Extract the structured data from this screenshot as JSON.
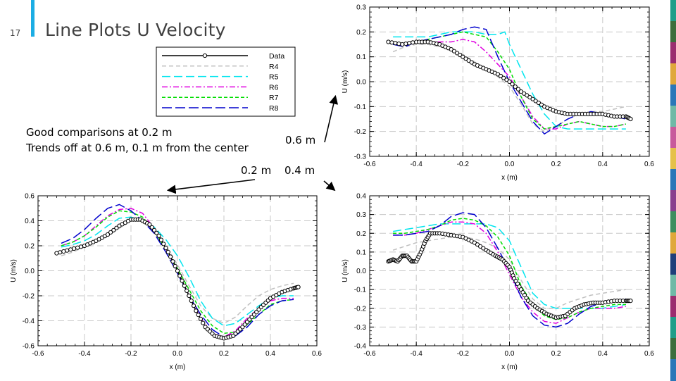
{
  "slide": {
    "number": "17",
    "title": "Line Plots U Velocity",
    "notes": [
      "Good comparisons at 0.2 m",
      "Trends off at 0.6 m, 0.1 m from the center"
    ],
    "pointer_labels": {
      "p06": "0.6 m",
      "p02": "0.2 m",
      "p04": "0.4 m"
    },
    "accent_color": "#1cade4",
    "strip_colors": [
      "#1f9e89",
      "#3c6e3c",
      "#9b2d6f",
      "#e0a83a",
      "#2a77b8",
      "#6fb9a6",
      "#c85a9c",
      "#e5c14a",
      "#2a77b8",
      "#8a3f8e",
      "#3e8e5f",
      "#e0a83a",
      "#1f3f7a",
      "#6fb9a6",
      "#9b2d6f",
      "#1f9e89",
      "#3c6e3c",
      "#2a77b8"
    ]
  },
  "chart_data": [
    {
      "type": "line",
      "id": "p06",
      "xlabel": "x (m)",
      "ylabel": "U (m/s)",
      "xlim": [
        -0.6,
        0.6
      ],
      "ylim": [
        -0.3,
        0.3
      ],
      "xticks": [
        -0.6,
        -0.4,
        -0.2,
        0.0,
        0.2,
        0.4,
        0.6
      ],
      "yticks": [
        -0.3,
        -0.2,
        -0.1,
        0.0,
        0.1,
        0.2,
        0.3
      ],
      "grid": true,
      "series": [
        {
          "name": "Data",
          "color": "#000000",
          "marker": "circle",
          "x": [
            -0.52,
            -0.46,
            -0.4,
            -0.35,
            -0.3,
            -0.25,
            -0.2,
            -0.15,
            -0.1,
            -0.05,
            0.0,
            0.05,
            0.1,
            0.15,
            0.2,
            0.25,
            0.3,
            0.35,
            0.4,
            0.45,
            0.5,
            0.52
          ],
          "y": [
            0.16,
            0.15,
            0.16,
            0.16,
            0.15,
            0.13,
            0.1,
            0.07,
            0.05,
            0.03,
            0.0,
            -0.04,
            -0.07,
            -0.1,
            -0.12,
            -0.13,
            -0.13,
            -0.13,
            -0.13,
            -0.14,
            -0.14,
            -0.15
          ]
        },
        {
          "name": "R4",
          "color": "#c0c0c0",
          "dash": "6,4",
          "x": [
            -0.5,
            -0.45,
            -0.4,
            -0.35,
            -0.3,
            -0.25,
            -0.2,
            -0.15,
            -0.1,
            -0.05,
            0.0,
            0.05,
            0.1,
            0.15,
            0.2,
            0.25,
            0.3,
            0.35,
            0.4,
            0.45,
            0.5
          ],
          "y": [
            0.12,
            0.14,
            0.15,
            0.15,
            0.14,
            0.13,
            0.11,
            0.08,
            0.05,
            0.02,
            -0.02,
            -0.09,
            -0.17,
            -0.2,
            -0.18,
            -0.15,
            -0.13,
            -0.12,
            -0.12,
            -0.11,
            -0.1
          ]
        },
        {
          "name": "R5",
          "color": "#00e5ee",
          "dash": "12,5",
          "x": [
            -0.5,
            -0.45,
            -0.4,
            -0.35,
            -0.3,
            -0.25,
            -0.2,
            -0.15,
            -0.1,
            -0.05,
            -0.02,
            0.0,
            0.05,
            0.1,
            0.15,
            0.2,
            0.25,
            0.3,
            0.35,
            0.4,
            0.45,
            0.5
          ],
          "y": [
            0.18,
            0.18,
            0.18,
            0.18,
            0.19,
            0.2,
            0.2,
            0.2,
            0.19,
            0.19,
            0.2,
            0.15,
            0.05,
            -0.05,
            -0.13,
            -0.18,
            -0.19,
            -0.19,
            -0.19,
            -0.19,
            -0.19,
            -0.19
          ]
        },
        {
          "name": "R6",
          "color": "#e000e0",
          "dash": "8,3,2,3",
          "x": [
            -0.5,
            -0.45,
            -0.4,
            -0.35,
            -0.3,
            -0.25,
            -0.2,
            -0.15,
            -0.1,
            -0.05,
            0.0,
            0.05,
            0.1,
            0.15,
            0.2,
            0.25,
            0.3,
            0.35,
            0.4,
            0.45,
            0.5
          ],
          "y": [
            0.15,
            0.15,
            0.16,
            0.16,
            0.16,
            0.16,
            0.17,
            0.16,
            0.12,
            0.07,
            0.02,
            -0.06,
            -0.14,
            -0.19,
            -0.19,
            -0.17,
            -0.16,
            -0.17,
            -0.18,
            -0.18,
            -0.17
          ]
        },
        {
          "name": "R7",
          "color": "#00dd00",
          "dash": "5,3",
          "x": [
            -0.5,
            -0.45,
            -0.4,
            -0.35,
            -0.3,
            -0.25,
            -0.2,
            -0.15,
            -0.1,
            -0.05,
            0.0,
            0.05,
            0.1,
            0.15,
            0.2,
            0.25,
            0.3,
            0.35,
            0.4,
            0.45,
            0.5
          ],
          "y": [
            0.15,
            0.15,
            0.16,
            0.17,
            0.18,
            0.19,
            0.2,
            0.19,
            0.18,
            0.12,
            0.05,
            -0.06,
            -0.15,
            -0.19,
            -0.18,
            -0.17,
            -0.16,
            -0.17,
            -0.18,
            -0.18,
            -0.17
          ]
        },
        {
          "name": "R8",
          "color": "#0000cc",
          "dash": "14,5",
          "x": [
            -0.5,
            -0.45,
            -0.4,
            -0.35,
            -0.3,
            -0.25,
            -0.2,
            -0.15,
            -0.1,
            -0.05,
            0.0,
            0.05,
            0.1,
            0.15,
            0.2,
            0.25,
            0.3,
            0.35,
            0.4,
            0.45,
            0.5
          ],
          "y": [
            0.15,
            0.14,
            0.16,
            0.17,
            0.18,
            0.19,
            0.21,
            0.22,
            0.21,
            0.1,
            0.0,
            -0.08,
            -0.16,
            -0.21,
            -0.18,
            -0.15,
            -0.13,
            -0.12,
            -0.13,
            -0.14,
            -0.15
          ]
        }
      ],
      "legend": {
        "placement": "top-left",
        "entries": [
          "Data",
          "R4",
          "R5",
          "R6",
          "R7",
          "R8"
        ]
      }
    },
    {
      "type": "line",
      "id": "p02",
      "xlabel": "x (m)",
      "ylabel": "U (m/s)",
      "xlim": [
        -0.6,
        0.6
      ],
      "ylim": [
        -0.6,
        0.6
      ],
      "xticks": [
        -0.6,
        -0.4,
        -0.2,
        0.0,
        0.2,
        0.4,
        0.6
      ],
      "yticks": [
        -0.6,
        -0.4,
        -0.2,
        0.0,
        0.2,
        0.4,
        0.6
      ],
      "grid": true,
      "series": [
        {
          "name": "Data",
          "color": "#000000",
          "marker": "circle",
          "x": [
            -0.52,
            -0.46,
            -0.4,
            -0.35,
            -0.3,
            -0.25,
            -0.2,
            -0.16,
            -0.12,
            -0.08,
            -0.04,
            0.0,
            0.04,
            0.08,
            0.12,
            0.16,
            0.2,
            0.24,
            0.28,
            0.32,
            0.36,
            0.4,
            0.45,
            0.5,
            0.52
          ],
          "y": [
            0.14,
            0.17,
            0.2,
            0.24,
            0.29,
            0.36,
            0.41,
            0.41,
            0.37,
            0.28,
            0.15,
            0.0,
            -0.16,
            -0.32,
            -0.45,
            -0.52,
            -0.54,
            -0.52,
            -0.45,
            -0.37,
            -0.29,
            -0.22,
            -0.17,
            -0.14,
            -0.13
          ]
        },
        {
          "name": "R4",
          "color": "#c0c0c0",
          "dash": "6,4",
          "x": [
            -0.5,
            -0.45,
            -0.4,
            -0.35,
            -0.3,
            -0.25,
            -0.2,
            -0.15,
            -0.1,
            -0.05,
            0.0,
            0.05,
            0.1,
            0.15,
            0.2,
            0.25,
            0.3,
            0.35,
            0.4,
            0.45,
            0.5
          ],
          "y": [
            0.12,
            0.15,
            0.19,
            0.23,
            0.28,
            0.34,
            0.4,
            0.4,
            0.32,
            0.2,
            0.05,
            -0.12,
            -0.28,
            -0.38,
            -0.42,
            -0.37,
            -0.28,
            -0.2,
            -0.15,
            -0.12,
            -0.1
          ]
        },
        {
          "name": "R5",
          "color": "#00e5ee",
          "dash": "12,5",
          "x": [
            -0.5,
            -0.45,
            -0.4,
            -0.35,
            -0.3,
            -0.25,
            -0.2,
            -0.15,
            -0.1,
            -0.05,
            0.0,
            0.05,
            0.1,
            0.15,
            0.2,
            0.25,
            0.3,
            0.35,
            0.4,
            0.45,
            0.5
          ],
          "y": [
            0.19,
            0.21,
            0.24,
            0.29,
            0.36,
            0.42,
            0.43,
            0.4,
            0.35,
            0.25,
            0.12,
            -0.05,
            -0.24,
            -0.38,
            -0.44,
            -0.42,
            -0.35,
            -0.28,
            -0.22,
            -0.2,
            -0.2
          ]
        },
        {
          "name": "R6",
          "color": "#e000e0",
          "dash": "8,3,2,3",
          "x": [
            -0.5,
            -0.45,
            -0.4,
            -0.35,
            -0.3,
            -0.25,
            -0.2,
            -0.15,
            -0.1,
            -0.05,
            0.0,
            0.05,
            0.1,
            0.15,
            0.2,
            0.25,
            0.3,
            0.35,
            0.4,
            0.45,
            0.5
          ],
          "y": [
            0.2,
            0.23,
            0.28,
            0.36,
            0.44,
            0.49,
            0.5,
            0.46,
            0.34,
            0.18,
            0.0,
            -0.2,
            -0.38,
            -0.5,
            -0.53,
            -0.48,
            -0.38,
            -0.3,
            -0.24,
            -0.22,
            -0.22
          ]
        },
        {
          "name": "R7",
          "color": "#00dd00",
          "dash": "5,3",
          "x": [
            -0.5,
            -0.45,
            -0.4,
            -0.35,
            -0.3,
            -0.25,
            -0.2,
            -0.15,
            -0.1,
            -0.05,
            0.0,
            0.05,
            0.1,
            0.15,
            0.2,
            0.25,
            0.3,
            0.35,
            0.4,
            0.45,
            0.5
          ],
          "y": [
            0.2,
            0.23,
            0.28,
            0.35,
            0.43,
            0.48,
            0.47,
            0.43,
            0.32,
            0.17,
            0.02,
            -0.15,
            -0.32,
            -0.44,
            -0.5,
            -0.49,
            -0.43,
            -0.35,
            -0.27,
            -0.24,
            -0.23
          ]
        },
        {
          "name": "R8",
          "color": "#0000cc",
          "dash": "14,5",
          "x": [
            -0.5,
            -0.45,
            -0.4,
            -0.35,
            -0.3,
            -0.25,
            -0.2,
            -0.15,
            -0.1,
            -0.05,
            0.0,
            0.05,
            0.1,
            0.15,
            0.2,
            0.25,
            0.3,
            0.35,
            0.4,
            0.45,
            0.5
          ],
          "y": [
            0.22,
            0.26,
            0.33,
            0.42,
            0.5,
            0.53,
            0.48,
            0.4,
            0.3,
            0.15,
            -0.02,
            -0.2,
            -0.35,
            -0.47,
            -0.53,
            -0.52,
            -0.45,
            -0.35,
            -0.28,
            -0.24,
            -0.23
          ]
        }
      ]
    },
    {
      "type": "line",
      "id": "p04",
      "xlabel": "x (m)",
      "ylabel": "U (m/s)",
      "xlim": [
        -0.6,
        0.6
      ],
      "ylim": [
        -0.4,
        0.4
      ],
      "xticks": [
        -0.6,
        -0.4,
        -0.2,
        0.0,
        0.2,
        0.4,
        0.6
      ],
      "yticks": [
        -0.4,
        -0.3,
        -0.2,
        -0.1,
        0.0,
        0.1,
        0.2,
        0.3,
        0.4
      ],
      "grid": true,
      "series": [
        {
          "name": "Data",
          "color": "#000000",
          "marker": "circle",
          "x": [
            -0.52,
            -0.5,
            -0.48,
            -0.46,
            -0.44,
            -0.42,
            -0.4,
            -0.38,
            -0.36,
            -0.34,
            -0.3,
            -0.25,
            -0.2,
            -0.15,
            -0.1,
            -0.06,
            -0.03,
            0.0,
            0.02,
            0.05,
            0.08,
            0.12,
            0.16,
            0.2,
            0.24,
            0.28,
            0.32,
            0.36,
            0.4,
            0.45,
            0.5,
            0.52
          ],
          "y": [
            0.05,
            0.06,
            0.05,
            0.08,
            0.08,
            0.05,
            0.05,
            0.1,
            0.16,
            0.2,
            0.2,
            0.19,
            0.18,
            0.15,
            0.11,
            0.08,
            0.06,
            0.02,
            -0.04,
            -0.1,
            -0.16,
            -0.2,
            -0.23,
            -0.25,
            -0.24,
            -0.2,
            -0.18,
            -0.17,
            -0.17,
            -0.16,
            -0.16,
            -0.16
          ]
        },
        {
          "name": "R4",
          "color": "#c0c0c0",
          "dash": "6,4",
          "x": [
            -0.5,
            -0.45,
            -0.4,
            -0.35,
            -0.3,
            -0.25,
            -0.2,
            -0.15,
            -0.1,
            -0.05,
            0.0,
            0.05,
            0.1,
            0.15,
            0.2,
            0.25,
            0.3,
            0.35,
            0.4,
            0.45,
            0.5
          ],
          "y": [
            0.11,
            0.13,
            0.15,
            0.16,
            0.17,
            0.18,
            0.18,
            0.17,
            0.15,
            0.12,
            0.06,
            -0.05,
            -0.15,
            -0.2,
            -0.2,
            -0.17,
            -0.15,
            -0.13,
            -0.12,
            -0.11,
            -0.1
          ]
        },
        {
          "name": "R5",
          "color": "#00e5ee",
          "dash": "12,5",
          "x": [
            -0.5,
            -0.45,
            -0.4,
            -0.35,
            -0.3,
            -0.25,
            -0.2,
            -0.15,
            -0.1,
            -0.05,
            0.0,
            0.05,
            0.1,
            0.15,
            0.2,
            0.25,
            0.3,
            0.35,
            0.4,
            0.45,
            0.5
          ],
          "y": [
            0.21,
            0.22,
            0.23,
            0.24,
            0.25,
            0.25,
            0.25,
            0.25,
            0.25,
            0.23,
            0.16,
            0.02,
            -0.12,
            -0.18,
            -0.2,
            -0.2,
            -0.2,
            -0.2,
            -0.2,
            -0.19,
            -0.18
          ]
        },
        {
          "name": "R6",
          "color": "#e000e0",
          "dash": "8,3,2,3",
          "x": [
            -0.5,
            -0.45,
            -0.4,
            -0.35,
            -0.3,
            -0.25,
            -0.2,
            -0.15,
            -0.1,
            -0.05,
            0.0,
            0.05,
            0.1,
            0.15,
            0.2,
            0.25,
            0.3,
            0.35,
            0.4,
            0.45,
            0.5
          ],
          "y": [
            0.19,
            0.19,
            0.2,
            0.22,
            0.24,
            0.26,
            0.26,
            0.25,
            0.2,
            0.1,
            -0.02,
            -0.14,
            -0.22,
            -0.27,
            -0.28,
            -0.25,
            -0.22,
            -0.2,
            -0.2,
            -0.2,
            -0.19
          ]
        },
        {
          "name": "R7",
          "color": "#00dd00",
          "dash": "5,3",
          "x": [
            -0.5,
            -0.45,
            -0.4,
            -0.35,
            -0.3,
            -0.25,
            -0.2,
            -0.15,
            -0.1,
            -0.05,
            0.0,
            0.05,
            0.1,
            0.15,
            0.2,
            0.25,
            0.3,
            0.35,
            0.4,
            0.45,
            0.5
          ],
          "y": [
            0.2,
            0.2,
            0.21,
            0.22,
            0.24,
            0.27,
            0.28,
            0.27,
            0.24,
            0.18,
            0.08,
            -0.08,
            -0.18,
            -0.24,
            -0.26,
            -0.25,
            -0.22,
            -0.2,
            -0.19,
            -0.18,
            -0.18
          ]
        },
        {
          "name": "R8",
          "color": "#0000cc",
          "dash": "14,5",
          "x": [
            -0.5,
            -0.45,
            -0.4,
            -0.35,
            -0.3,
            -0.25,
            -0.2,
            -0.15,
            -0.1,
            -0.05,
            0.0,
            0.05,
            0.1,
            0.15,
            0.2,
            0.25,
            0.3,
            0.35,
            0.4,
            0.45,
            0.5
          ],
          "y": [
            0.19,
            0.19,
            0.2,
            0.21,
            0.24,
            0.29,
            0.31,
            0.3,
            0.23,
            0.12,
            0.0,
            -0.14,
            -0.24,
            -0.29,
            -0.3,
            -0.28,
            -0.23,
            -0.19,
            -0.17,
            -0.16,
            -0.15
          ]
        }
      ]
    }
  ]
}
